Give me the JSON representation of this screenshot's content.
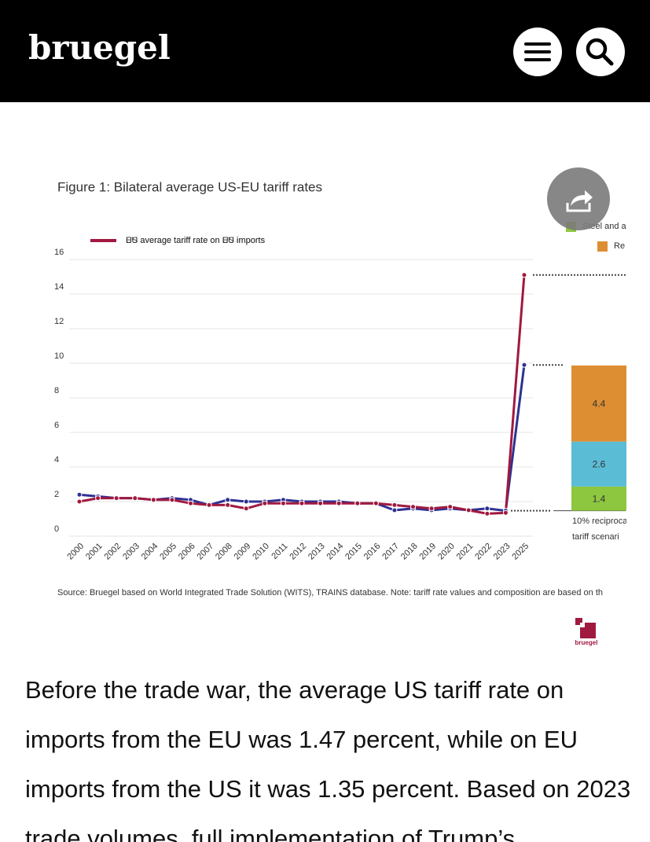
{
  "header": {
    "logo": "bruegel"
  },
  "chart_data": {
    "type": "line",
    "title": "Figure 1: Bilateral average US-EU tariff rates",
    "categories": [
      "2000",
      "2001",
      "2002",
      "2003",
      "2004",
      "2005",
      "2006",
      "2007",
      "2008",
      "2009",
      "2010",
      "2011",
      "2012",
      "2013",
      "2014",
      "2015",
      "2016",
      "2017",
      "2018",
      "2019",
      "2020",
      "2021",
      "2022",
      "2023",
      "2025"
    ],
    "series": [
      {
        "name": "US average tariff rate on EU imports",
        "color": "#2e3192",
        "values": [
          2.4,
          2.3,
          2.2,
          2.2,
          2.1,
          2.2,
          2.1,
          1.8,
          2.1,
          2.0,
          2.0,
          2.1,
          2.0,
          2.0,
          2.0,
          1.9,
          1.9,
          1.5,
          1.6,
          1.5,
          1.6,
          1.5,
          1.6,
          1.47,
          9.9
        ]
      },
      {
        "name": "EU average tariff rate on US imports",
        "color": "#a0193f",
        "values": [
          2.0,
          2.2,
          2.2,
          2.2,
          2.1,
          2.1,
          1.9,
          1.8,
          1.8,
          1.6,
          1.9,
          1.9,
          1.9,
          1.9,
          1.9,
          1.9,
          1.9,
          1.8,
          1.7,
          1.6,
          1.7,
          1.5,
          1.3,
          1.35,
          15.1
        ]
      }
    ],
    "ylim": [
      0,
      16
    ],
    "yticks": [
      0,
      2,
      4,
      6,
      8,
      10,
      12,
      14,
      16
    ],
    "grid": true,
    "stack": {
      "label": [
        "10% reciproca",
        "tariff scenari"
      ],
      "segments": [
        {
          "name": "Steel and a",
          "color": "#8dc63f",
          "value": 1.4
        },
        {
          "name": null,
          "color": "#5bbcd6",
          "value": 2.6
        },
        {
          "name": "Re",
          "color": "#dd8e32",
          "value": 4.4
        }
      ]
    },
    "source": "Source: Bruegel based on World Integrated Trade Solution (WITS), TRAINS database. Note: tariff rate values and composition are based on th",
    "logo_small": "bruegel"
  },
  "body": {
    "paragraph": "Before the trade war, the average US tariff rate on imports from the EU was 1.47 percent, while on EU imports from the US it was 1.35 percent. Based on 2023 trade volumes, full implementation of Trump’s"
  }
}
